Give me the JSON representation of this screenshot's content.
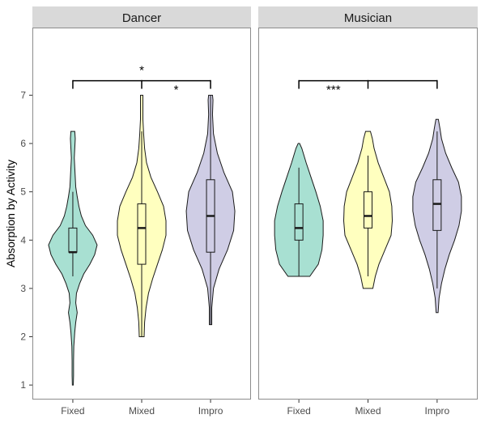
{
  "chart_data": {
    "type": "violin",
    "ylabel": "Absorption by Activity",
    "ylim": [
      0.7,
      8.4
    ],
    "yticks": [
      1,
      2,
      3,
      4,
      5,
      6,
      7
    ],
    "categories": [
      "Fixed",
      "Mixed",
      "Impro"
    ],
    "colors": {
      "Fixed": "#a8e0d2",
      "Mixed": "#ffffbf",
      "Impro": "#cfcde5"
    },
    "panels": [
      {
        "name": "Dancer",
        "groups": [
          {
            "category": "Fixed",
            "box": {
              "q1": 3.75,
              "median": 3.75,
              "q3": 4.25,
              "whisker_low": 3.25,
              "whisker_high": 5.0
            },
            "violin": [
              [
                1.0,
                0.02
              ],
              [
                1.2,
                0.03
              ],
              [
                1.5,
                0.03
              ],
              [
                1.8,
                0.04
              ],
              [
                2.1,
                0.08
              ],
              [
                2.3,
                0.12
              ],
              [
                2.5,
                0.18
              ],
              [
                2.7,
                0.12
              ],
              [
                2.9,
                0.15
              ],
              [
                3.1,
                0.28
              ],
              [
                3.3,
                0.45
              ],
              [
                3.5,
                0.7
              ],
              [
                3.7,
                0.9
              ],
              [
                3.9,
                1.0
              ],
              [
                4.1,
                0.82
              ],
              [
                4.3,
                0.52
              ],
              [
                4.5,
                0.35
              ],
              [
                4.7,
                0.25
              ],
              [
                4.9,
                0.18
              ],
              [
                5.1,
                0.12
              ],
              [
                5.3,
                0.1
              ],
              [
                5.5,
                0.08
              ],
              [
                5.7,
                0.06
              ],
              [
                5.9,
                0.08
              ],
              [
                6.1,
                0.1
              ],
              [
                6.25,
                0.08
              ]
            ]
          },
          {
            "category": "Mixed",
            "box": {
              "q1": 3.5,
              "median": 4.25,
              "q3": 4.75,
              "whisker_low": 2.0,
              "whisker_high": 6.25
            },
            "violin": [
              [
                2.0,
                0.1
              ],
              [
                2.3,
                0.12
              ],
              [
                2.6,
                0.18
              ],
              [
                2.9,
                0.28
              ],
              [
                3.2,
                0.45
              ],
              [
                3.5,
                0.65
              ],
              [
                3.8,
                0.85
              ],
              [
                4.1,
                1.0
              ],
              [
                4.4,
                1.0
              ],
              [
                4.7,
                0.9
              ],
              [
                5.0,
                0.65
              ],
              [
                5.3,
                0.38
              ],
              [
                5.6,
                0.2
              ],
              [
                5.9,
                0.12
              ],
              [
                6.2,
                0.08
              ],
              [
                6.5,
                0.05
              ],
              [
                6.8,
                0.05
              ],
              [
                7.0,
                0.05
              ]
            ]
          },
          {
            "category": "Impro",
            "box": {
              "q1": 3.75,
              "median": 4.5,
              "q3": 5.25,
              "whisker_low": 2.25,
              "whisker_high": 7.0
            },
            "violin": [
              [
                2.25,
                0.05
              ],
              [
                2.6,
                0.05
              ],
              [
                3.0,
                0.12
              ],
              [
                3.4,
                0.35
              ],
              [
                3.8,
                0.7
              ],
              [
                4.2,
                0.95
              ],
              [
                4.6,
                1.0
              ],
              [
                5.0,
                0.9
              ],
              [
                5.4,
                0.55
              ],
              [
                5.8,
                0.28
              ],
              [
                6.2,
                0.12
              ],
              [
                6.6,
                0.08
              ],
              [
                6.9,
                0.1
              ],
              [
                7.0,
                0.08
              ]
            ]
          }
        ],
        "significance": [
          {
            "from": "Fixed",
            "to": "Impro",
            "label": "*",
            "y": 7.3
          },
          {
            "from": "Mixed",
            "to": "Impro",
            "label": "*",
            "y": 7.3
          }
        ]
      },
      {
        "name": "Musician",
        "groups": [
          {
            "category": "Fixed",
            "box": {
              "q1": 4.0,
              "median": 4.25,
              "q3": 4.75,
              "whisker_low": 3.25,
              "whisker_high": 5.5
            },
            "violin": [
              [
                3.25,
                0.45
              ],
              [
                3.5,
                0.8
              ],
              [
                3.8,
                0.95
              ],
              [
                4.1,
                1.0
              ],
              [
                4.4,
                1.0
              ],
              [
                4.7,
                0.88
              ],
              [
                5.0,
                0.7
              ],
              [
                5.3,
                0.5
              ],
              [
                5.6,
                0.3
              ],
              [
                5.9,
                0.12
              ],
              [
                6.0,
                0.03
              ]
            ]
          },
          {
            "category": "Mixed",
            "box": {
              "q1": 4.25,
              "median": 4.5,
              "q3": 5.0,
              "whisker_low": 3.25,
              "whisker_high": 5.75
            },
            "violin": [
              [
                3.0,
                0.2
              ],
              [
                3.25,
                0.3
              ],
              [
                3.5,
                0.45
              ],
              [
                3.8,
                0.7
              ],
              [
                4.1,
                0.95
              ],
              [
                4.4,
                1.0
              ],
              [
                4.7,
                0.98
              ],
              [
                5.0,
                0.88
              ],
              [
                5.3,
                0.65
              ],
              [
                5.6,
                0.42
              ],
              [
                5.9,
                0.25
              ],
              [
                6.1,
                0.18
              ],
              [
                6.25,
                0.1
              ]
            ]
          },
          {
            "category": "Impro",
            "box": {
              "q1": 4.2,
              "median": 4.75,
              "q3": 5.25,
              "whisker_low": 3.0,
              "whisker_high": 6.25
            },
            "violin": [
              [
                2.5,
                0.04
              ],
              [
                2.8,
                0.08
              ],
              [
                3.1,
                0.18
              ],
              [
                3.4,
                0.32
              ],
              [
                3.7,
                0.5
              ],
              [
                4.0,
                0.72
              ],
              [
                4.3,
                0.9
              ],
              [
                4.6,
                1.0
              ],
              [
                4.9,
                1.0
              ],
              [
                5.2,
                0.88
              ],
              [
                5.5,
                0.6
              ],
              [
                5.8,
                0.35
              ],
              [
                6.1,
                0.18
              ],
              [
                6.3,
                0.12
              ],
              [
                6.5,
                0.05
              ]
            ]
          }
        ],
        "significance": [
          {
            "from": "Fixed",
            "to": "Impro",
            "label": "***",
            "y": 7.3
          }
        ]
      }
    ]
  }
}
